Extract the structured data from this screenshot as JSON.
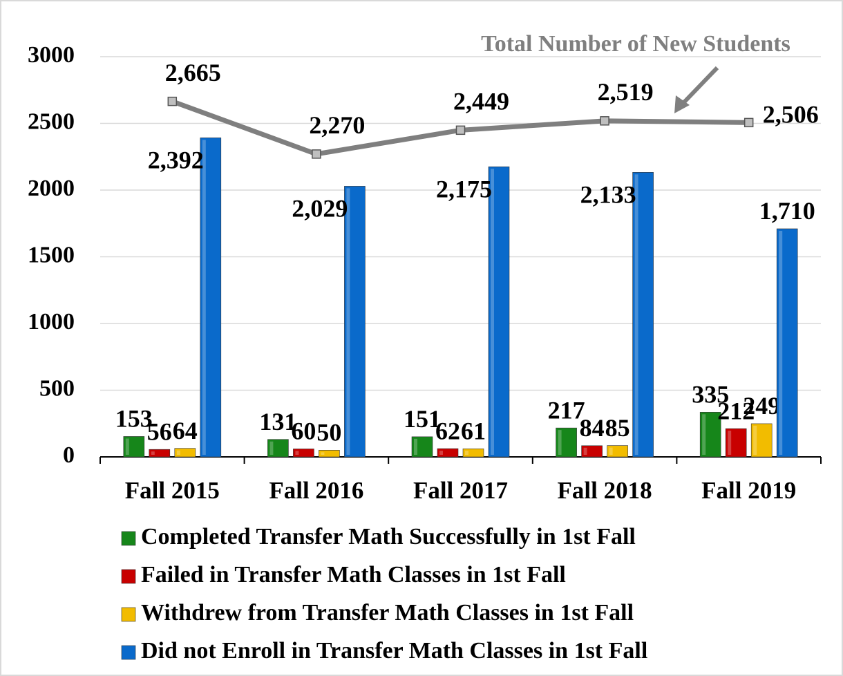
{
  "chart_data": {
    "type": "bar",
    "annotation": "Total Number of New Students",
    "categories": [
      "Fall 2015",
      "Fall 2016",
      "Fall 2017",
      "Fall 2018",
      "Fall 2019"
    ],
    "series": [
      {
        "name": "Completed Transfer Math Successfully in 1st Fall",
        "color": "#16861a",
        "values": [
          153,
          131,
          151,
          217,
          335
        ]
      },
      {
        "name": "Failed in Transfer Math Classes in 1st Fall",
        "color": "#c80000",
        "values": [
          56,
          60,
          62,
          84,
          212
        ]
      },
      {
        "name": "Withdrew from Transfer Math Classes in 1st Fall",
        "color": "#f2bc00",
        "values": [
          64,
          50,
          61,
          85,
          249
        ]
      },
      {
        "name": "Did not Enroll in Transfer Math Classes in 1st Fall",
        "color": "#0a6acb",
        "values": [
          2392,
          2029,
          2175,
          2133,
          1710
        ],
        "value_labels": [
          "2,392",
          "2,029",
          "2,175",
          "2,133",
          "1,710"
        ]
      },
      {
        "type": "line",
        "color": "#7f7f7f",
        "values": [
          2665,
          2270,
          2449,
          2519,
          2506
        ],
        "value_labels": [
          "2,665",
          "2,270",
          "2,449",
          "2,519",
          "2,506"
        ]
      }
    ],
    "ylim": [
      0,
      3000
    ],
    "yticks": [
      0,
      500,
      1000,
      1500,
      2000,
      2500,
      3000
    ],
    "grid": true
  }
}
